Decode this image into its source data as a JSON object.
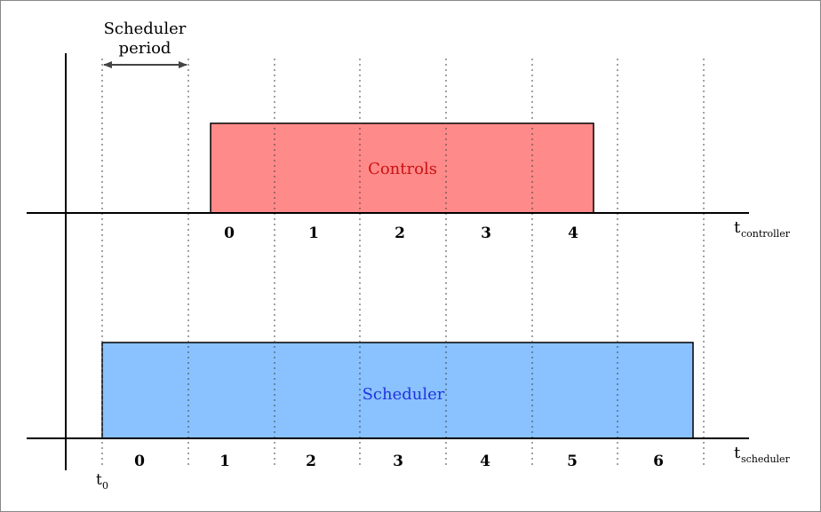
{
  "annotation": {
    "line1": "Scheduler",
    "line2": "period"
  },
  "controller": {
    "box_label": "Controls",
    "axis_base": "t",
    "axis_sub": "controller",
    "ticks": [
      "0",
      "1",
      "2",
      "3",
      "4"
    ],
    "box_fill": "#ff8a8a",
    "label_color": "#cc1111"
  },
  "scheduler": {
    "box_label": "Scheduler",
    "axis_base": "t",
    "axis_sub": "scheduler",
    "ticks": [
      "0",
      "1",
      "2",
      "3",
      "4",
      "5",
      "6"
    ],
    "box_fill": "#89c2ff",
    "label_color": "#2233dd"
  },
  "origin": {
    "base": "t",
    "sub": "0"
  }
}
